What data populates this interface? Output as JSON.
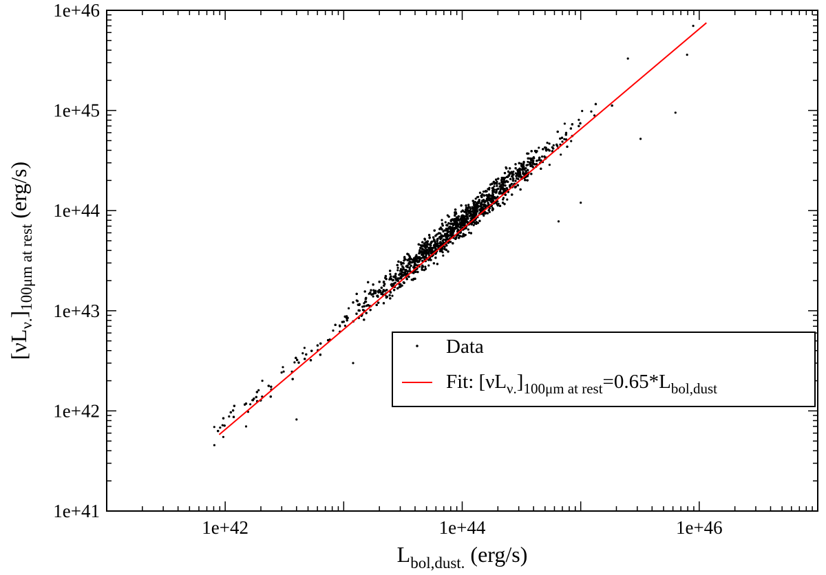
{
  "chart_data": {
    "type": "scatter",
    "x_scale": "log",
    "y_scale": "log",
    "xlim": [
      1e+41,
      1e+47
    ],
    "ylim": [
      1e+41,
      1e+46
    ],
    "x_ticks": [
      {
        "value": 1e+42,
        "label": "1e+42"
      },
      {
        "value": 1e+44,
        "label": "1e+44"
      },
      {
        "value": 1e+46,
        "label": "1e+46"
      }
    ],
    "y_ticks": [
      {
        "value": 1e+41,
        "label": "1e+41"
      },
      {
        "value": 1e+42,
        "label": "1e+42"
      },
      {
        "value": 1e+43,
        "label": "1e+43"
      },
      {
        "value": 1e+44,
        "label": "1e+44"
      },
      {
        "value": 1e+45,
        "label": "1e+45"
      },
      {
        "value": 1e+46,
        "label": "1e+46"
      }
    ],
    "xlabel": {
      "main": "L",
      "sub": "bol,dust.",
      "unit": " (erg/s)"
    },
    "ylabel": {
      "open": "[νL",
      "sub1": "ν.",
      "close": "]",
      "sub2": "100μm at rest",
      "unit": " (erg/s)"
    },
    "grid": false,
    "legend_position": "lower-right",
    "series": [
      {
        "name": "Data",
        "kind": "points",
        "color": "#000000",
        "trend": {
          "slope": 1.0,
          "coefficient": 0.65
        },
        "x_range_log10": [
          41.9,
          46.1
        ],
        "approx_count": 4000,
        "outliers": [
          {
            "x": 6.5e+44,
            "y": 7.8e+43
          },
          {
            "x": 1e+45,
            "y": 1.2e+44
          },
          {
            "x": 3.2e+45,
            "y": 5.2e+44
          },
          {
            "x": 6.3e+45,
            "y": 9.5e+44
          },
          {
            "x": 4e+42,
            "y": 8.2e+41
          },
          {
            "x": 9.5e+41,
            "y": 7.2e+41
          },
          {
            "x": 1.5e+42,
            "y": 7e+41
          },
          {
            "x": 1.2e+43,
            "y": 3e+42
          },
          {
            "x": 3e+43,
            "y": 2.5e+43
          },
          {
            "x": 2.5e+45,
            "y": 3.3e+45
          },
          {
            "x": 7.9e+45,
            "y": 3.6e+45
          },
          {
            "x": 8.9e+45,
            "y": 7e+45
          }
        ]
      },
      {
        "name": "Fit: [νLν.]100μm at rest=0.65*Lbol,dust",
        "kind": "line",
        "color": "#ff0000",
        "x": [
          8.9e+41,
          1.15e+46
        ],
        "y": [
          5.8e+41,
          7.5e+45
        ]
      }
    ],
    "legend": {
      "data_label": "Data",
      "fit_prefix": "Fit: [νL",
      "fit_sub1": "ν.",
      "fit_close": "]",
      "fit_sub2": "100μm at rest",
      "fit_eq": "=0.65*L",
      "fit_sub3": "bol,dust"
    }
  }
}
